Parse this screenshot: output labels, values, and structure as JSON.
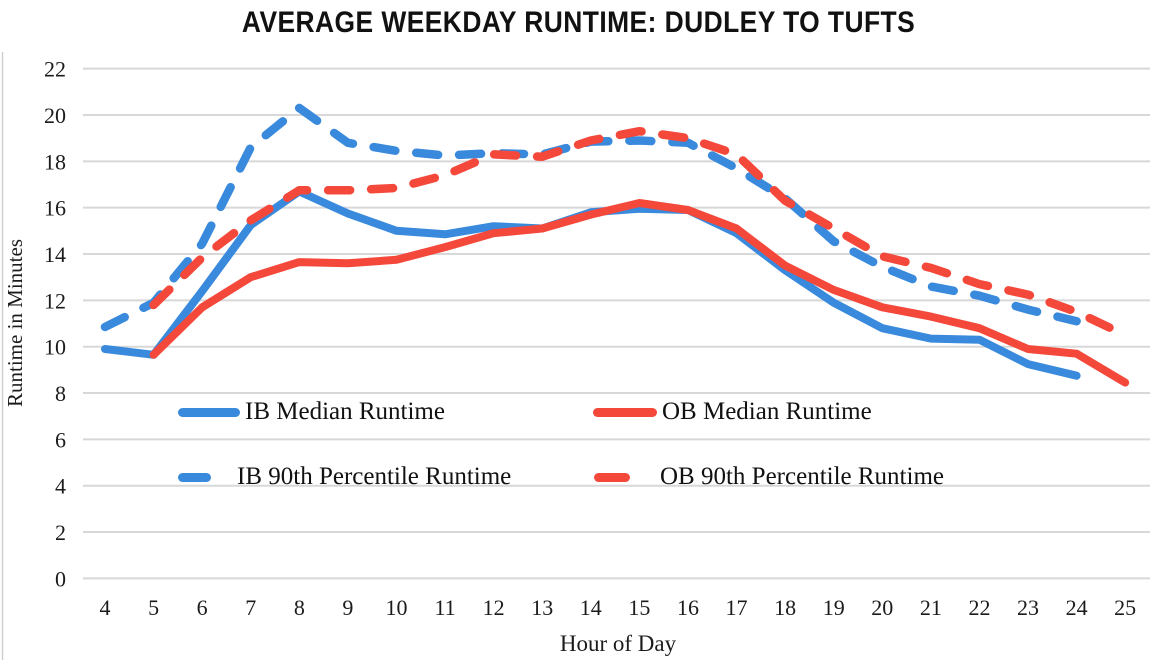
{
  "title": "AVERAGE WEEKDAY RUNTIME: DUDLEY TO TUFTS",
  "chart_data": {
    "type": "line",
    "title": "AVERAGE WEEKDAY RUNTIME: DUDLEY TO TUFTS",
    "xlabel": "Hour of Day",
    "ylabel": "Runtime in Minutes",
    "x": [
      4,
      5,
      6,
      7,
      8,
      9,
      10,
      11,
      12,
      13,
      14,
      15,
      16,
      17,
      18,
      19,
      20,
      21,
      22,
      23,
      24,
      25
    ],
    "yticks": [
      0,
      2,
      4,
      6,
      8,
      10,
      12,
      14,
      16,
      18,
      20,
      22
    ],
    "ylim": [
      0,
      22
    ],
    "grid": "horizontal",
    "legend_position": "inside-left",
    "colors": {
      "blue": "#3989dc",
      "red": "#f4483b",
      "gridline": "#d8d8d8"
    },
    "series": [
      {
        "name": "IB Median Runtime",
        "color": "#3989dc",
        "style": "solid",
        "values": [
          9.9,
          9.65,
          12.4,
          15.25,
          16.7,
          15.75,
          15.0,
          14.85,
          15.2,
          15.1,
          15.8,
          15.95,
          15.9,
          14.9,
          13.3,
          11.9,
          10.8,
          10.35,
          10.3,
          9.25,
          8.75,
          null
        ]
      },
      {
        "name": "IB 90th Percentile Runtime",
        "color": "#3989dc",
        "style": "dashed",
        "values": [
          10.85,
          11.9,
          14.45,
          18.6,
          20.3,
          18.8,
          18.45,
          18.25,
          18.35,
          18.3,
          18.85,
          18.9,
          18.8,
          17.7,
          16.4,
          14.55,
          13.45,
          12.6,
          12.2,
          11.6,
          11.1,
          null
        ]
      },
      {
        "name": "OB Median Runtime",
        "color": "#f4483b",
        "style": "solid",
        "values": [
          null,
          9.65,
          11.7,
          13.0,
          13.65,
          13.6,
          13.75,
          14.3,
          14.9,
          15.1,
          15.7,
          16.2,
          15.9,
          15.1,
          13.5,
          12.45,
          11.7,
          11.3,
          10.8,
          9.9,
          9.7,
          8.45
        ]
      },
      {
        "name": "OB 90th Percentile Runtime",
        "color": "#f4483b",
        "style": "dashed",
        "values": [
          null,
          11.8,
          13.85,
          15.45,
          16.75,
          16.75,
          16.85,
          17.4,
          18.3,
          18.2,
          18.9,
          19.3,
          19.0,
          18.3,
          16.3,
          15.1,
          13.9,
          13.4,
          12.7,
          12.25,
          11.5,
          10.5
        ]
      }
    ]
  },
  "legend": {
    "row1_left": "IB Median Runtime",
    "row1_right": "OB Median Runtime",
    "row2_left": "IB 90th Percentile Runtime",
    "row2_right": "OB 90th Percentile Runtime"
  }
}
